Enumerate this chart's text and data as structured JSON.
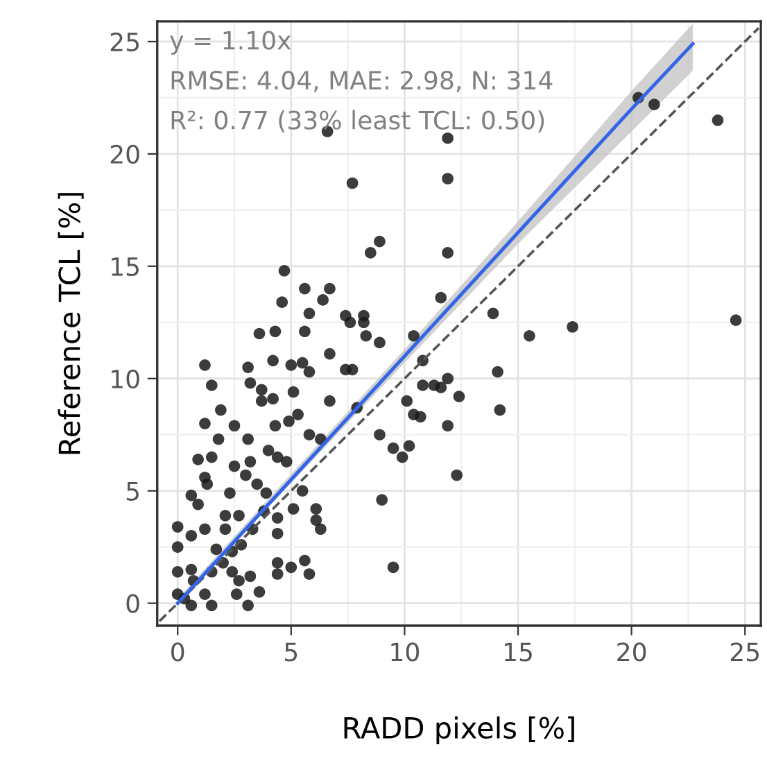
{
  "chart_data": {
    "type": "scatter",
    "xlabel": "RADD pixels [%]",
    "ylabel": "Reference TCL [%]",
    "xlim": [
      -0.9,
      25.7
    ],
    "ylim": [
      -1.0,
      25.9
    ],
    "xticks": [
      0,
      5,
      10,
      15,
      20,
      25
    ],
    "yticks": [
      0,
      5,
      10,
      15,
      20,
      25
    ],
    "grid": true,
    "annotations": [
      "y = 1.10x",
      "RMSE: 4.04, MAE: 2.98, N: 314",
      "R²: 0.77 (33% least TCL: 0.50)"
    ],
    "series": [
      {
        "color": "#1a1a1a",
        "marker": "circle",
        "x": [
          24.6,
          23.8,
          20.3,
          21.0,
          11.9,
          11.9,
          11.9,
          6.6,
          7.7,
          8.5,
          8.9,
          4.7,
          5.6,
          6.7,
          4.6,
          6.4,
          5.8,
          7.6,
          8.2,
          11.6,
          13.9,
          15.5,
          17.4,
          14.1,
          14.2,
          12.4,
          11.9,
          11.6,
          11.3,
          10.8,
          10.7,
          11.9,
          12.3,
          10.8,
          10.4,
          10.1,
          10.4,
          8.9,
          9.5,
          9.9,
          10.2,
          9.0,
          9.5,
          7.9,
          7.4,
          8.2,
          3.6,
          4.3,
          5.6,
          8.3,
          8.9,
          1.2,
          3.1,
          4.2,
          5.0,
          5.5,
          5.8,
          6.7,
          7.4,
          7.7,
          1.5,
          3.2,
          3.7,
          4.2,
          3.7,
          5.1,
          6.7,
          1.9,
          2.5,
          1.2,
          5.3,
          4.3,
          4.9,
          1.8,
          3.1,
          5.8,
          6.3,
          0.9,
          1.5,
          2.5,
          3.2,
          4.0,
          4.4,
          4.8,
          1.2,
          1.3,
          3.0,
          3.5,
          5.5,
          3.9,
          0.6,
          0.9,
          2.3,
          2.1,
          2.7,
          3.8,
          4.4,
          5.1,
          6.1,
          6.1,
          6.3,
          4.4,
          0.0,
          1.2,
          3.3,
          2.1,
          0.0,
          0.6,
          1.7,
          2.4,
          2.8,
          4.4,
          5.0,
          5.6,
          5.8,
          4.4,
          0.0,
          0.6,
          0.7,
          1.5,
          2.4,
          2.7,
          3.2,
          3.6,
          2.6,
          3.1,
          1.5,
          0.3,
          0.0,
          0.6,
          1.2,
          2.0
        ],
        "values": [
          12.6,
          21.5,
          22.5,
          22.2,
          20.7,
          18.9,
          15.6,
          21.0,
          18.7,
          15.6,
          16.1,
          14.8,
          14.0,
          14.0,
          13.4,
          13.5,
          12.9,
          12.5,
          12.5,
          13.6,
          12.9,
          11.9,
          12.3,
          10.3,
          8.6,
          9.2,
          10.0,
          9.6,
          9.7,
          9.7,
          8.3,
          7.9,
          5.7,
          10.8,
          11.9,
          9.0,
          8.4,
          7.5,
          6.9,
          6.5,
          7.0,
          4.6,
          1.6,
          8.7,
          12.8,
          12.8,
          12.0,
          12.1,
          12.1,
          11.9,
          11.6,
          10.6,
          10.5,
          10.8,
          10.6,
          10.7,
          10.3,
          11.1,
          10.4,
          10.4,
          9.7,
          9.8,
          9.5,
          9.1,
          9.0,
          9.4,
          9.0,
          8.6,
          7.9,
          8.0,
          8.4,
          7.9,
          8.1,
          7.3,
          7.3,
          7.5,
          7.3,
          6.4,
          6.5,
          6.1,
          6.3,
          6.8,
          6.5,
          6.3,
          5.6,
          5.3,
          5.7,
          5.3,
          5.0,
          4.9,
          4.8,
          4.4,
          4.9,
          3.9,
          3.9,
          4.1,
          3.8,
          4.2,
          4.2,
          3.7,
          3.3,
          3.1,
          3.4,
          3.3,
          3.3,
          3.3,
          2.5,
          3.0,
          2.4,
          2.3,
          2.6,
          1.8,
          1.6,
          1.9,
          1.3,
          1.3,
          1.4,
          1.5,
          1.0,
          1.4,
          1.4,
          1.0,
          1.2,
          0.5,
          0.4,
          -0.1,
          -0.1,
          0.2,
          0.4,
          -0.1,
          0.4,
          1.8
        ]
      },
      {
        "type": "line",
        "color": "#555555",
        "line_style": "dashed",
        "x": [
          -0.8,
          25.6
        ],
        "values": [
          -0.8,
          25.6
        ]
      },
      {
        "type": "line",
        "color": "#3366e6",
        "line_style": "solid",
        "x": [
          0,
          10,
          15,
          20,
          22.7
        ],
        "values": [
          0,
          11.0,
          16.5,
          22.0,
          24.9
        ],
        "lower": [
          0,
          10.7,
          16.0,
          21.0,
          23.7
        ],
        "upper": [
          0.2,
          11.3,
          17.0,
          22.8,
          25.8
        ]
      }
    ]
  }
}
